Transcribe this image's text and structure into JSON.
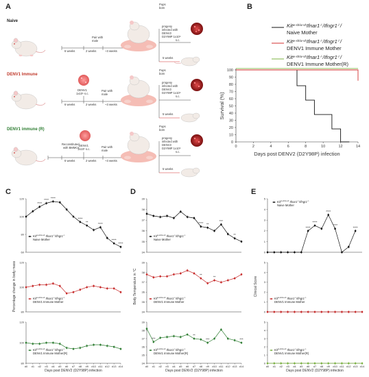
{
  "panels": {
    "A": "A",
    "B": "B",
    "C": "C",
    "D": "D",
    "E": "E"
  },
  "schematic": {
    "groups": [
      {
        "label": "Naive",
        "color": "#222222"
      },
      {
        "label": "DENV1 Immune",
        "color": "#c0392b"
      },
      {
        "label": "DENV1 immune (R)",
        "color": "#2e7d32"
      }
    ],
    "reconstituted_lines": [
      "Reconstituted",
      "with BMMCs"
    ],
    "denv1_lines": [
      "DENV1",
      "1x10⁵ s.c."
    ],
    "pair_lines": [
      "Pair with",
      "male"
    ],
    "pups_lines": [
      "Pups",
      "born"
    ],
    "progeny_lines_naive": [
      "progeny",
      "infected with",
      "DENV2",
      "D2Y98P 1x10⁵",
      "s.c."
    ],
    "progeny_lines_immune": [
      "progeny",
      "infected with",
      "DENV2",
      "D2Y98P 1x10⁵",
      "s.c."
    ],
    "weeks_6": "6 weeks",
    "weeks_2": "2 weeks",
    "weeks_3": "~3 weeks",
    "weeks_5": "5 weeks"
  },
  "survival_chart": {
    "chart_data": {
      "type": "line",
      "title": "",
      "xlabel": "Days post DENV2 (D2Y98P) infection",
      "ylabel": "Survival (%)",
      "xlim": [
        0,
        14
      ],
      "ylim": [
        0,
        100
      ],
      "xticks": [
        0,
        2,
        4,
        6,
        8,
        10,
        12,
        14
      ],
      "yticks": [
        0,
        10,
        20,
        30,
        40,
        50,
        60,
        70,
        80,
        90,
        100
      ],
      "series": [
        {
          "name": "Kit^{w-sh/w-sh}Ifnar1^{-/-}Ifngr1^{-/-} Naive Mother",
          "color": "#111111",
          "steps": [
            [
              0,
              100
            ],
            [
              7,
              100
            ],
            [
              7,
              78
            ],
            [
              8,
              78
            ],
            [
              8,
              58
            ],
            [
              9,
              58
            ],
            [
              9,
              38
            ],
            [
              11,
              38
            ],
            [
              11,
              18
            ],
            [
              12,
              18
            ],
            [
              12,
              0
            ],
            [
              13,
              0
            ]
          ]
        },
        {
          "name": "Kit^{w-sh/w-sh}Ifnar1^{-/-}Ifngr1^{-/-} DENV1 Immune Mother",
          "color": "#d32f2f",
          "steps": [
            [
              0,
              100
            ],
            [
              14,
              100
            ],
            [
              14,
              85
            ]
          ]
        },
        {
          "name": "Kit^{w-sh/w-sh}Ifnar1^{-/-}Ifngr1^{-/-} DENV1 Immune Mother(R)",
          "color": "#7cb342",
          "steps": [
            [
              0,
              102
            ],
            [
              14,
              102
            ]
          ]
        }
      ]
    },
    "legend": [
      {
        "line1": "Kit",
        "sup1": "w-sh/w-sh",
        "mid": "Ifnar1",
        "sup2": "-/-",
        "end": "Ifngr1",
        "sup3": "-/-",
        "suffix": "/",
        "line2": "Naive Mother",
        "color": "#111111"
      },
      {
        "line1": "Kit",
        "sup1": "w-sh/w-sh",
        "mid": "Ifnar1",
        "sup2": "-/-",
        "end": "Ifngr1",
        "sup3": "-/-",
        "suffix": "/",
        "line2": "DENV1 Immune Mother",
        "color": "#d32f2f"
      },
      {
        "line1": "Kit",
        "sup1": "w-sh/w-sh",
        "mid": "Ifnar1",
        "sup2": "-/-",
        "end": "Ifngr1",
        "sup3": "-/-",
        "suffix": "/",
        "line2": "DENV1 Immune Mother(R)",
        "color": "#7cb342"
      }
    ]
  },
  "day_labels": [
    "d0",
    "d1",
    "d2",
    "d3",
    "d4",
    "d5",
    "d6",
    "d7",
    "d8",
    "d9",
    "d10",
    "d11",
    "d12",
    "d13",
    "d14"
  ],
  "panel_C": {
    "xlabel": "Days post DENV2 (D2Y98P) infection",
    "ylabel": "Percentage change in body mass",
    "chart_data": [
      {
        "type": "line",
        "name": "Naive Mother",
        "color": "#111111",
        "ylim": [
          60,
          120
        ],
        "yticks": [
          60,
          80,
          100,
          120
        ],
        "values": [
          100,
          106,
          111,
          115,
          117,
          116,
          108,
          100,
          94,
          90,
          85,
          88,
          76,
          70,
          66
        ],
        "stars": [
          "",
          "",
          "****",
          "****",
          "****",
          "",
          "",
          "",
          "****",
          "**",
          "",
          "****",
          "",
          "****",
          "****"
        ]
      },
      {
        "type": "line",
        "name": "DENV1 Immune Mother",
        "color": "#c62828",
        "ylim": [
          80,
          120
        ],
        "yticks": [
          80,
          100,
          120
        ],
        "values": [
          100,
          101,
          102,
          102,
          103,
          101,
          95,
          96,
          98,
          100,
          101,
          100,
          99,
          99,
          96
        ],
        "stars": []
      },
      {
        "type": "line",
        "name": "DENV1 Immune Mother(R)",
        "color": "#2e7d32",
        "ylim": [
          80,
          120
        ],
        "yticks": [
          80,
          100,
          120
        ],
        "values": [
          100,
          99,
          99,
          100,
          100,
          99,
          95,
          94,
          95,
          97,
          98,
          98,
          97,
          96,
          94
        ],
        "stars": []
      }
    ]
  },
  "panel_D": {
    "xlabel": "Days post DENV2 (D2Y98P) infection",
    "ylabel": "Body Temperature in °C",
    "chart_data": [
      {
        "type": "line",
        "name": "Naive Mother",
        "color": "#111111",
        "ylim": [
          34,
          39
        ],
        "yticks": [
          34,
          35,
          36,
          37,
          38,
          39
        ],
        "values": [
          37.6,
          37.4,
          37.3,
          37.4,
          37.2,
          37.8,
          37.3,
          37.2,
          36.4,
          36.3,
          36.0,
          36.6,
          35.7,
          35.3,
          35.0
        ],
        "stars": [
          "",
          "",
          "",
          "",
          "",
          "",
          "",
          "",
          "****",
          "**",
          "",
          "***",
          "",
          "**",
          ""
        ]
      },
      {
        "type": "line",
        "name": "DENV1 Immune Mother",
        "color": "#c62828",
        "ylim": [
          34,
          39
        ],
        "yticks": [
          34,
          35,
          36,
          37,
          38,
          39
        ],
        "values": [
          37.8,
          37.5,
          37.6,
          37.6,
          37.8,
          37.9,
          38.2,
          37.9,
          37.4,
          36.9,
          37.2,
          37.0,
          37.2,
          37.4,
          37.8
        ],
        "stars": [
          "",
          "",
          "",
          "",
          "",
          "",
          "",
          "",
          "**",
          "",
          "**",
          "",
          "",
          "",
          ""
        ]
      },
      {
        "type": "line",
        "name": "DENV1 Immune Mother(R)",
        "color": "#2e7d32",
        "ylim": [
          34,
          39
        ],
        "yticks": [
          34,
          35,
          36,
          37,
          38,
          39
        ],
        "values": [
          38.2,
          36.6,
          37.1,
          37.2,
          37.3,
          37.2,
          37.5,
          37.0,
          36.9,
          36.5,
          37.0,
          38.1,
          37.0,
          36.8,
          36.5
        ],
        "stars": [
          "",
          "***",
          "",
          "",
          "",
          "",
          "",
          "**",
          "",
          "***",
          "",
          "",
          "",
          "",
          "***"
        ]
      }
    ]
  },
  "panel_E": {
    "xlabel": "Days post DENV2 (D2Y98P) infection",
    "ylabel": "Clinical Score",
    "chart_data": [
      {
        "type": "line",
        "name": "Naive Mother",
        "color": "#111111",
        "ylim": [
          0,
          5
        ],
        "yticks": [
          0,
          1,
          2,
          3,
          4,
          5
        ],
        "values": [
          0,
          0,
          0,
          0,
          0,
          0,
          2,
          2.5,
          2.2,
          3.5,
          2.2,
          0,
          0.5,
          2,
          null
        ],
        "stars": [
          "",
          "",
          "",
          "",
          "",
          "",
          "****",
          "****",
          "",
          "****",
          "****",
          "",
          "",
          "****",
          ""
        ]
      },
      {
        "type": "line",
        "name": "DENV1 Immune Mother",
        "color": "#c62828",
        "ylim": [
          0,
          5
        ],
        "yticks": [
          0,
          1,
          2,
          3,
          4,
          5
        ],
        "values": [
          0,
          0,
          0,
          0,
          0,
          0,
          0,
          0,
          0,
          0,
          0,
          0,
          0,
          0,
          0
        ],
        "stars": []
      },
      {
        "type": "line",
        "name": "DENV1 Immune Mother(R)",
        "color": "#7cb342",
        "ylim": [
          0,
          5
        ],
        "yticks": [
          0,
          1,
          2,
          3,
          4,
          5
        ],
        "values": [
          0,
          0,
          0,
          0,
          0,
          0,
          0,
          0,
          0,
          0,
          0,
          0,
          0,
          0,
          0
        ],
        "stars": []
      }
    ]
  },
  "mini_legends": {
    "naive": "Naive Mother",
    "immune": "DENV1 Immune Mother",
    "immune_r": "DENV1 Immune Mother(R)",
    "genotype": "Kit",
    "sup": "w-sh/w-sh",
    "genes": " Ifnar1",
    "sup2": "-/-",
    "genes2": "Ifngr1",
    "sup3": "-/-"
  }
}
